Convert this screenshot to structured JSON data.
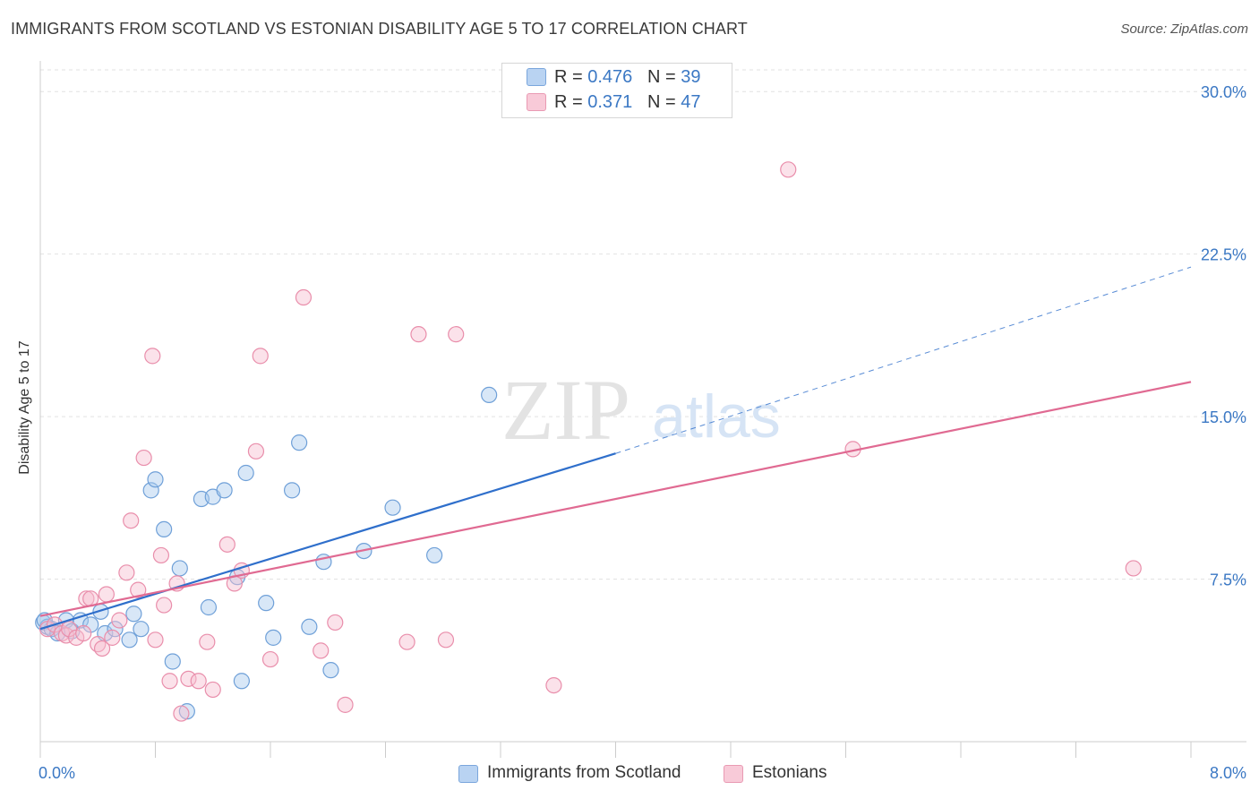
{
  "header": {
    "title": "IMMIGRANTS FROM SCOTLAND VS ESTONIAN DISABILITY AGE 5 TO 17 CORRELATION CHART",
    "source": "Source: ZipAtlas.com"
  },
  "watermark": {
    "zip": "ZIP",
    "atlas": "atlas"
  },
  "legend_top": [
    {
      "r_label": "R =",
      "r_value": "0.476",
      "n_label": "N =",
      "n_value": "39"
    },
    {
      "r_label": "R =",
      "r_value": "0.371",
      "n_label": "N =",
      "n_value": "47"
    }
  ],
  "legend_bottom": [
    {
      "label": "Immigrants from Scotland"
    },
    {
      "label": "Estonians"
    }
  ],
  "chart_data": {
    "type": "scatter",
    "title": "IMMIGRANTS FROM SCOTLAND VS ESTONIAN DISABILITY AGE 5 TO 17 CORRELATION CHART",
    "xlabel": "",
    "ylabel": "Disability Age 5 to 17",
    "xlim": [
      0,
      8
    ],
    "ylim": [
      0,
      31
    ],
    "x_tick_labels": [
      "0.0%",
      "8.0%"
    ],
    "y_ticks": [
      7.5,
      15.0,
      22.5,
      30.0
    ],
    "y_tick_labels": [
      "7.5%",
      "15.0%",
      "22.5%",
      "30.0%"
    ],
    "grid": true,
    "legend_position": "top-center",
    "series": [
      {
        "name": "Immigrants from Scotland",
        "color": "#a9c9ee",
        "stroke": "#6fa0d8",
        "line_color": "#2f6fcb",
        "trend": {
          "x0": 0.0,
          "y0": 5.2,
          "x1": 4.0,
          "y1": 13.3,
          "dash_to_x": 8.0,
          "dash_to_y": 21.9
        },
        "points": [
          [
            0.02,
            5.5
          ],
          [
            0.05,
            5.3
          ],
          [
            0.08,
            5.2
          ],
          [
            0.12,
            5.0
          ],
          [
            0.18,
            5.6
          ],
          [
            0.22,
            5.1
          ],
          [
            0.28,
            5.6
          ],
          [
            0.35,
            5.4
          ],
          [
            0.42,
            6.0
          ],
          [
            0.45,
            5.0
          ],
          [
            0.52,
            5.2
          ],
          [
            0.62,
            4.7
          ],
          [
            0.65,
            5.9
          ],
          [
            0.7,
            5.2
          ],
          [
            0.77,
            11.6
          ],
          [
            0.8,
            12.1
          ],
          [
            0.86,
            9.8
          ],
          [
            0.92,
            3.7
          ],
          [
            0.97,
            8.0
          ],
          [
            1.02,
            1.4
          ],
          [
            1.12,
            11.2
          ],
          [
            1.17,
            6.2
          ],
          [
            1.2,
            11.3
          ],
          [
            1.28,
            11.6
          ],
          [
            1.37,
            7.6
          ],
          [
            1.4,
            2.8
          ],
          [
            1.43,
            12.4
          ],
          [
            1.57,
            6.4
          ],
          [
            1.62,
            4.8
          ],
          [
            1.75,
            11.6
          ],
          [
            1.8,
            13.8
          ],
          [
            1.87,
            5.3
          ],
          [
            1.97,
            8.3
          ],
          [
            2.02,
            3.3
          ],
          [
            2.25,
            8.8
          ],
          [
            2.45,
            10.8
          ],
          [
            2.74,
            8.6
          ],
          [
            3.12,
            16.0
          ],
          [
            0.03,
            5.6
          ]
        ]
      },
      {
        "name": "Estonians",
        "color": "#f6bfd0",
        "stroke": "#e98eab",
        "line_color": "#e06a92",
        "trend": {
          "x0": 0.0,
          "y0": 5.8,
          "x1": 8.0,
          "y1": 16.6
        },
        "points": [
          [
            0.05,
            5.2
          ],
          [
            0.1,
            5.4
          ],
          [
            0.15,
            5.0
          ],
          [
            0.18,
            4.9
          ],
          [
            0.2,
            5.2
          ],
          [
            0.25,
            4.8
          ],
          [
            0.3,
            5.0
          ],
          [
            0.32,
            6.6
          ],
          [
            0.35,
            6.6
          ],
          [
            0.4,
            4.5
          ],
          [
            0.43,
            4.3
          ],
          [
            0.46,
            6.8
          ],
          [
            0.5,
            4.8
          ],
          [
            0.55,
            5.6
          ],
          [
            0.6,
            7.8
          ],
          [
            0.63,
            10.2
          ],
          [
            0.68,
            7.0
          ],
          [
            0.72,
            13.1
          ],
          [
            0.78,
            17.8
          ],
          [
            0.8,
            4.7
          ],
          [
            0.84,
            8.6
          ],
          [
            0.86,
            6.3
          ],
          [
            0.9,
            2.8
          ],
          [
            0.95,
            7.3
          ],
          [
            0.98,
            1.3
          ],
          [
            1.03,
            2.9
          ],
          [
            1.1,
            2.8
          ],
          [
            1.16,
            4.6
          ],
          [
            1.2,
            2.4
          ],
          [
            1.3,
            9.1
          ],
          [
            1.35,
            7.3
          ],
          [
            1.4,
            7.9
          ],
          [
            1.5,
            13.4
          ],
          [
            1.53,
            17.8
          ],
          [
            1.6,
            3.8
          ],
          [
            1.83,
            20.5
          ],
          [
            1.95,
            4.2
          ],
          [
            2.05,
            5.5
          ],
          [
            2.12,
            1.7
          ],
          [
            2.55,
            4.6
          ],
          [
            2.63,
            18.8
          ],
          [
            2.82,
            4.7
          ],
          [
            2.89,
            18.8
          ],
          [
            3.57,
            2.6
          ],
          [
            5.2,
            26.4
          ],
          [
            5.65,
            13.5
          ],
          [
            7.6,
            8.0
          ]
        ]
      }
    ]
  }
}
